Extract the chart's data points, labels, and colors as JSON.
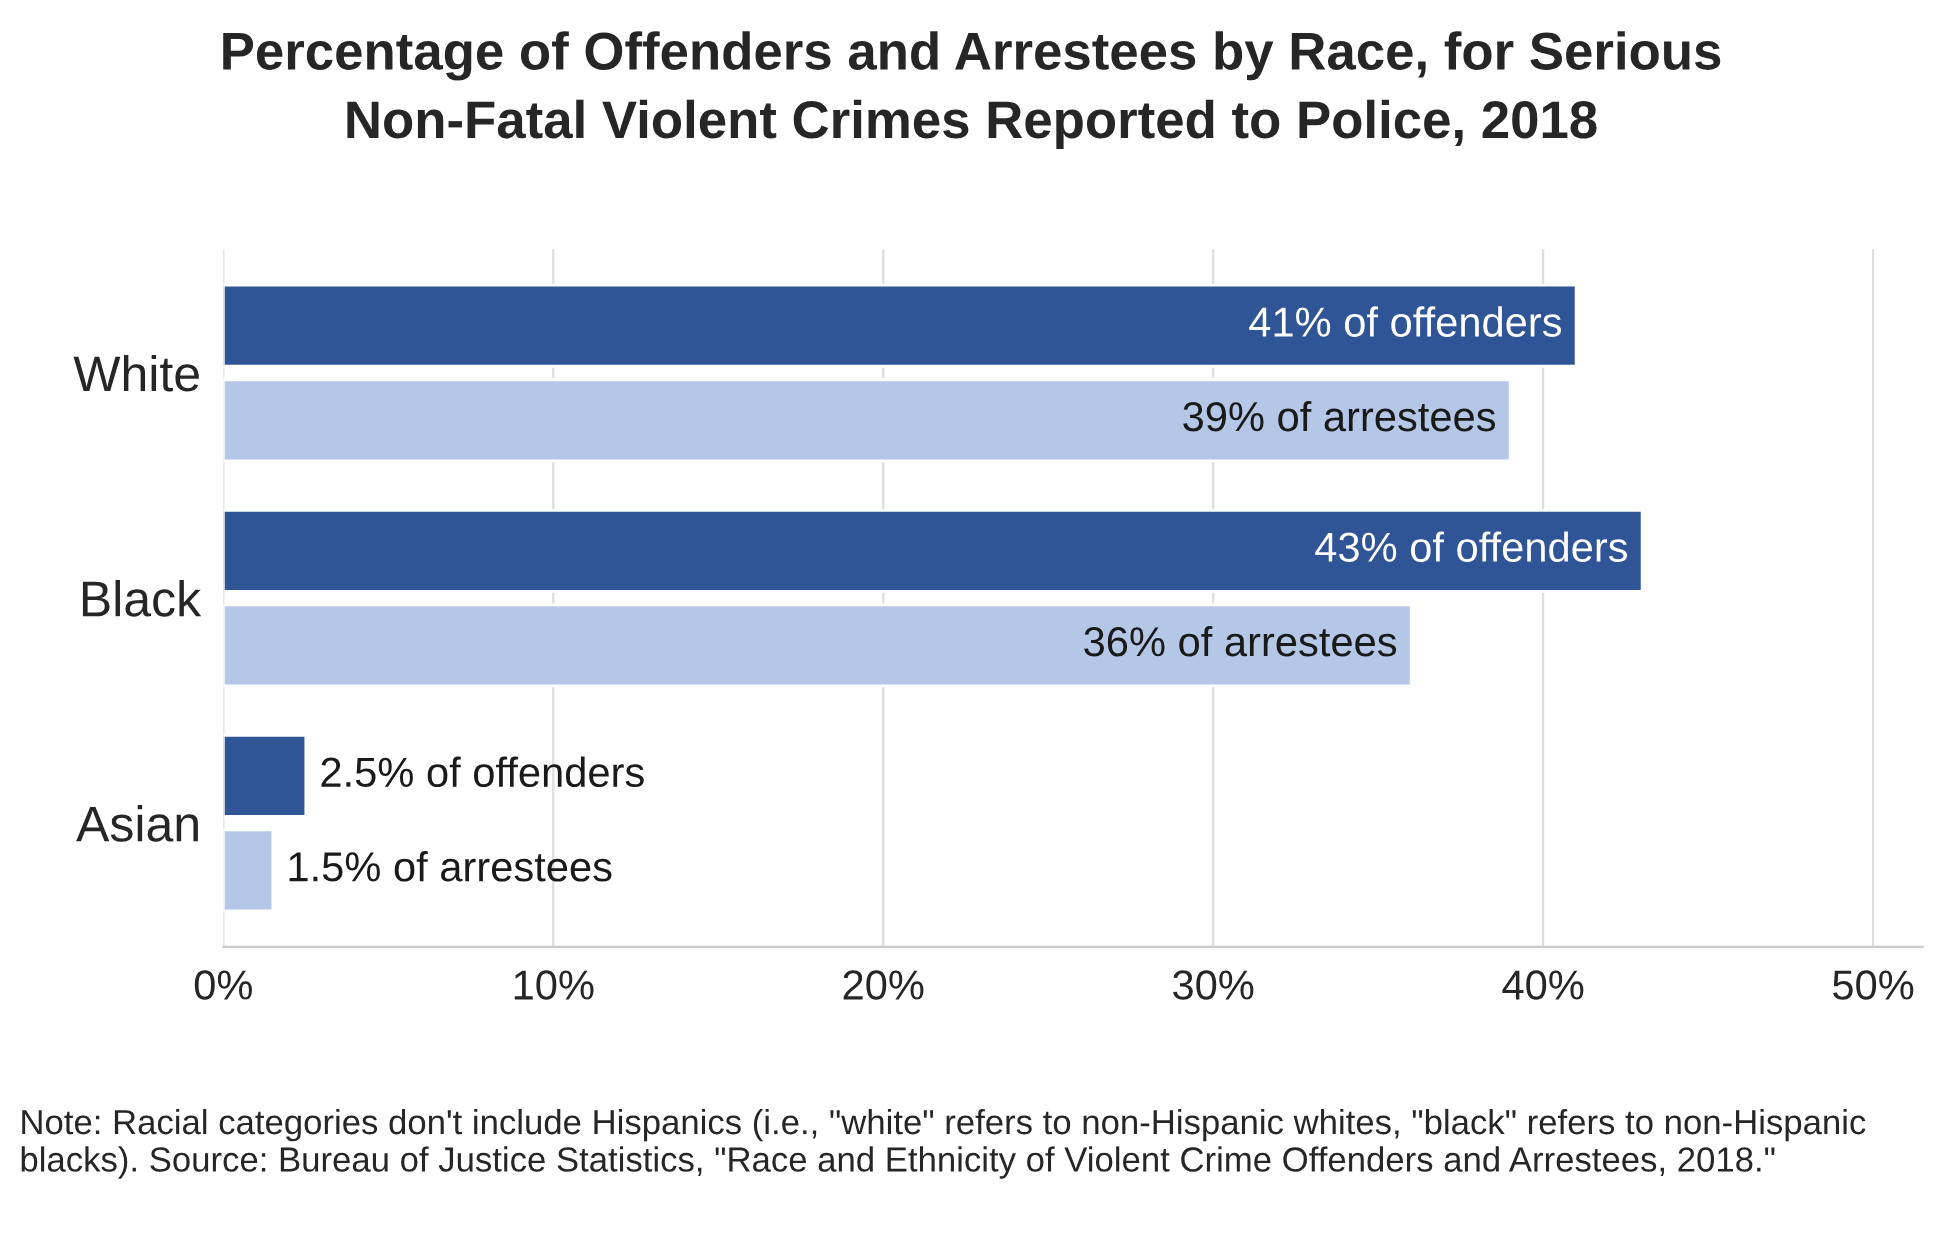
{
  "chart_data": {
    "type": "bar",
    "orientation": "horizontal",
    "title": "Percentage of Offenders and Arrestees by Race, for Serious\nNon-Fatal Violent Crimes Reported to Police, 2018",
    "categories": [
      "White",
      "Black",
      "Asian"
    ],
    "series": [
      {
        "color": "#2f5597",
        "values": [
          41,
          43,
          2.5
        ],
        "value_labels": [
          "41% of offenders",
          "43% of offenders",
          "2.5% of offenders"
        ]
      },
      {
        "color": "#b4c7e7",
        "values": [
          39,
          36,
          1.5
        ],
        "value_labels": [
          "39% of arrestees",
          "36% of arrestees",
          "1.5% of arrestees"
        ]
      }
    ],
    "xlim": [
      0,
      51.5
    ],
    "xticks": [
      {
        "value": 0,
        "label": "0%"
      },
      {
        "value": 10,
        "label": "10%"
      },
      {
        "value": 20,
        "label": "20%"
      },
      {
        "value": 30,
        "label": "30%"
      },
      {
        "value": 40,
        "label": "40%"
      },
      {
        "value": 50,
        "label": "50%"
      }
    ],
    "grid": "x",
    "annotations": [
      "Note: Racial categories don't include Hispanics (i.e., \"white\" refers to non-Hispanic whites, \"black\" refers to non-Hispanic blacks). Source: Bureau of Justice Statistics, \"Race and Ethnicity of Violent Crime Offenders and Arrestees, 2018.\""
    ]
  }
}
